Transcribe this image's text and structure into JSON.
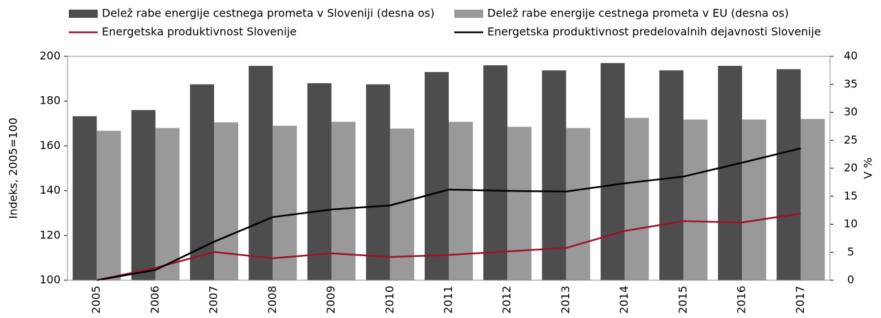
{
  "chart_data": {
    "type": "bar_line",
    "categories": [
      "2005",
      "2006",
      "2007",
      "2008",
      "2009",
      "2010",
      "2011",
      "2012",
      "2013",
      "2014",
      "2015",
      "2016",
      "2017"
    ],
    "series": [
      {
        "name": "Delež rabe energije cestnega prometa v Sloveniji (desna os)",
        "color": "#4d4d4d",
        "kind": "bar",
        "axis": "y2",
        "values": [
          29.3,
          30.4,
          35.0,
          38.3,
          35.2,
          35.0,
          37.2,
          38.4,
          37.5,
          38.8,
          37.5,
          38.3,
          37.7
        ]
      },
      {
        "name": "Delež rabe energije cestnega prometa v EU (desna os)",
        "color": "#999999",
        "kind": "bar",
        "axis": "y2",
        "values": [
          26.7,
          27.2,
          28.2,
          27.6,
          28.3,
          27.1,
          28.3,
          27.4,
          27.2,
          29.0,
          28.7,
          28.7,
          28.8
        ]
      },
      {
        "name": "Energetska produktivnost Slovenije",
        "color": "#a0112b",
        "kind": "line",
        "axis": "y",
        "values": [
          100,
          105.5,
          112.6,
          109.8,
          112,
          110.4,
          111.3,
          112.9,
          114.4,
          122,
          126.4,
          125.8,
          129.8
        ]
      },
      {
        "name": "Energetska produktivnost predelovalnih dejavnosti Slovenije",
        "color": "#000000",
        "kind": "line",
        "axis": "y",
        "values": [
          100,
          104.6,
          117.2,
          128.2,
          131.6,
          133.4,
          140.5,
          139.9,
          139.6,
          143.3,
          146.3,
          152.5,
          158.9
        ]
      }
    ],
    "ylabel": "Indeks, 2005=100",
    "y2label": "V %",
    "ylim": [
      100,
      200
    ],
    "yticks": [
      100,
      120,
      140,
      160,
      180,
      200
    ],
    "y2lim": [
      0,
      40
    ],
    "y2ticks": [
      0,
      5,
      10,
      15,
      20,
      25,
      30,
      35,
      40
    ]
  }
}
